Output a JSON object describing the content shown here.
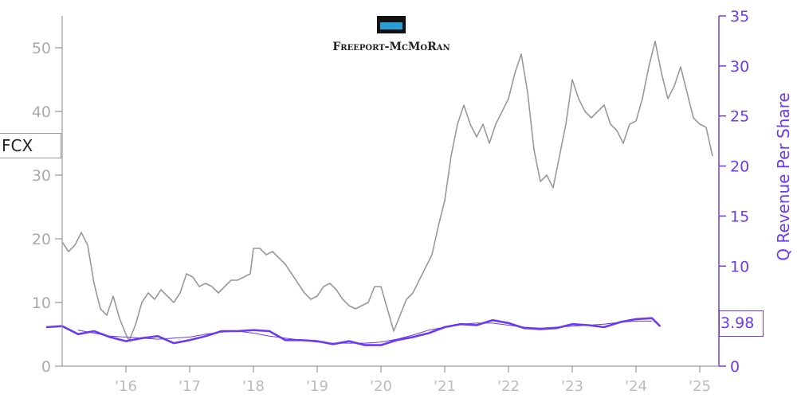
{
  "ticker": "FCX",
  "logo": {
    "text": "Freeport-McMoRan"
  },
  "colors": {
    "price": "#999999",
    "revenue": "#6a3bf0",
    "left_axis": "#aaaaaa",
    "x_axis": "#bbbbbb"
  },
  "chart_data": {
    "type": "line",
    "title": "",
    "y2label": "Q Revenue Per Share",
    "last_value_label": "3.98",
    "x_ticks": [
      "'16",
      "'17",
      "'18",
      "'19",
      "'20",
      "'21",
      "'22",
      "'23",
      "'24",
      "'25"
    ],
    "ylim": [
      0,
      55
    ],
    "y_ticks": [
      0,
      10,
      20,
      30,
      40,
      50
    ],
    "y2lim": [
      0,
      35
    ],
    "y2_ticks": [
      0,
      5,
      10,
      15,
      20,
      25,
      30,
      35
    ],
    "series": [
      {
        "axis": "left",
        "points": [
          [
            "2015.00",
            19.5
          ],
          [
            "2015.10",
            18.0
          ],
          [
            "2015.20",
            19.0
          ],
          [
            "2015.30",
            21.0
          ],
          [
            "2015.40",
            19.0
          ],
          [
            "2015.50",
            13.0
          ],
          [
            "2015.60",
            9.0
          ],
          [
            "2015.70",
            8.0
          ],
          [
            "2015.80",
            11.0
          ],
          [
            "2015.90",
            7.5
          ],
          [
            "2016.00",
            5.0
          ],
          [
            "2016.05",
            4.0
          ],
          [
            "2016.15",
            6.5
          ],
          [
            "2016.25",
            10.0
          ],
          [
            "2016.35",
            11.5
          ],
          [
            "2016.45",
            10.5
          ],
          [
            "2016.55",
            12.0
          ],
          [
            "2016.65",
            11.0
          ],
          [
            "2016.75",
            10.0
          ],
          [
            "2016.85",
            11.5
          ],
          [
            "2016.95",
            14.5
          ],
          [
            "2017.05",
            14.0
          ],
          [
            "2017.15",
            12.5
          ],
          [
            "2017.25",
            13.0
          ],
          [
            "2017.35",
            12.5
          ],
          [
            "2017.45",
            11.5
          ],
          [
            "2017.55",
            12.5
          ],
          [
            "2017.65",
            13.5
          ],
          [
            "2017.75",
            13.5
          ],
          [
            "2017.85",
            14.0
          ],
          [
            "2017.95",
            14.5
          ],
          [
            "2018.00",
            18.5
          ],
          [
            "2018.10",
            18.5
          ],
          [
            "2018.20",
            17.5
          ],
          [
            "2018.30",
            18.0
          ],
          [
            "2018.40",
            17.0
          ],
          [
            "2018.50",
            16.0
          ],
          [
            "2018.60",
            14.5
          ],
          [
            "2018.70",
            13.0
          ],
          [
            "2018.80",
            11.5
          ],
          [
            "2018.90",
            10.5
          ],
          [
            "2019.00",
            11.0
          ],
          [
            "2019.10",
            12.5
          ],
          [
            "2019.20",
            13.0
          ],
          [
            "2019.30",
            12.0
          ],
          [
            "2019.40",
            10.5
          ],
          [
            "2019.50",
            9.5
          ],
          [
            "2019.60",
            9.0
          ],
          [
            "2019.70",
            9.5
          ],
          [
            "2019.80",
            10.0
          ],
          [
            "2019.90",
            12.5
          ],
          [
            "2020.00",
            12.5
          ],
          [
            "2020.10",
            9.0
          ],
          [
            "2020.20",
            5.5
          ],
          [
            "2020.30",
            8.0
          ],
          [
            "2020.40",
            10.5
          ],
          [
            "2020.50",
            11.5
          ],
          [
            "2020.60",
            13.5
          ],
          [
            "2020.70",
            15.5
          ],
          [
            "2020.80",
            17.5
          ],
          [
            "2020.90",
            22.0
          ],
          [
            "2021.00",
            26.0
          ],
          [
            "2021.10",
            33.0
          ],
          [
            "2021.20",
            38.0
          ],
          [
            "2021.30",
            41.0
          ],
          [
            "2021.40",
            38.0
          ],
          [
            "2021.50",
            36.0
          ],
          [
            "2021.60",
            38.0
          ],
          [
            "2021.70",
            35.0
          ],
          [
            "2021.80",
            38.0
          ],
          [
            "2021.90",
            40.0
          ],
          [
            "2022.00",
            42.0
          ],
          [
            "2022.10",
            46.0
          ],
          [
            "2022.20",
            49.0
          ],
          [
            "2022.30",
            43.0
          ],
          [
            "2022.40",
            34.0
          ],
          [
            "2022.50",
            29.0
          ],
          [
            "2022.60",
            30.0
          ],
          [
            "2022.70",
            28.0
          ],
          [
            "2022.80",
            33.0
          ],
          [
            "2022.90",
            38.0
          ],
          [
            "2023.00",
            45.0
          ],
          [
            "2023.10",
            42.0
          ],
          [
            "2023.20",
            40.0
          ],
          [
            "2023.30",
            39.0
          ],
          [
            "2023.40",
            40.0
          ],
          [
            "2023.50",
            41.0
          ],
          [
            "2023.60",
            38.0
          ],
          [
            "2023.70",
            37.0
          ],
          [
            "2023.80",
            35.0
          ],
          [
            "2023.90",
            38.0
          ],
          [
            "2024.00",
            38.5
          ],
          [
            "2024.10",
            42.0
          ],
          [
            "2024.20",
            47.0
          ],
          [
            "2024.30",
            51.0
          ],
          [
            "2024.40",
            46.0
          ],
          [
            "2024.50",
            42.0
          ],
          [
            "2024.60",
            44.0
          ],
          [
            "2024.70",
            47.0
          ],
          [
            "2024.80",
            43.0
          ],
          [
            "2024.90",
            39.0
          ],
          [
            "2025.00",
            38.0
          ],
          [
            "2025.10",
            37.5
          ],
          [
            "2025.20",
            33.0
          ]
        ]
      },
      {
        "name": "Q Revenue Per Share",
        "axis": "right",
        "points": [
          [
            "2014.75",
            3.9
          ],
          [
            "2015.00",
            4.0
          ],
          [
            "2015.25",
            3.2
          ],
          [
            "2015.50",
            3.5
          ],
          [
            "2015.75",
            2.9
          ],
          [
            "2016.00",
            2.5
          ],
          [
            "2016.25",
            2.8
          ],
          [
            "2016.50",
            3.0
          ],
          [
            "2016.75",
            2.3
          ],
          [
            "2017.00",
            2.6
          ],
          [
            "2017.25",
            3.0
          ],
          [
            "2017.50",
            3.5
          ],
          [
            "2017.75",
            3.5
          ],
          [
            "2018.00",
            3.6
          ],
          [
            "2018.25",
            3.5
          ],
          [
            "2018.50",
            2.6
          ],
          [
            "2018.75",
            2.6
          ],
          [
            "2019.00",
            2.5
          ],
          [
            "2019.25",
            2.2
          ],
          [
            "2019.50",
            2.5
          ],
          [
            "2019.75",
            2.1
          ],
          [
            "2020.00",
            2.1
          ],
          [
            "2020.25",
            2.6
          ],
          [
            "2020.50",
            2.9
          ],
          [
            "2020.75",
            3.3
          ],
          [
            "2021.00",
            3.9
          ],
          [
            "2021.25",
            4.2
          ],
          [
            "2021.50",
            4.1
          ],
          [
            "2021.75",
            4.6
          ],
          [
            "2022.00",
            4.3
          ],
          [
            "2022.25",
            3.8
          ],
          [
            "2022.50",
            3.7
          ],
          [
            "2022.75",
            3.8
          ],
          [
            "2023.00",
            4.2
          ],
          [
            "2023.25",
            4.1
          ],
          [
            "2023.50",
            3.9
          ],
          [
            "2023.75",
            4.4
          ],
          [
            "2024.00",
            4.7
          ],
          [
            "2024.25",
            4.8
          ],
          [
            "2024.38",
            3.98
          ]
        ]
      },
      {
        "axis": "right",
        "points": [
          [
            "2015.25",
            3.6
          ],
          [
            "2015.50",
            3.3
          ],
          [
            "2015.75",
            3.0
          ],
          [
            "2016.00",
            2.9
          ],
          [
            "2016.25",
            2.8
          ],
          [
            "2016.50",
            2.7
          ],
          [
            "2016.75",
            2.8
          ],
          [
            "2017.00",
            2.9
          ],
          [
            "2017.25",
            3.2
          ],
          [
            "2017.50",
            3.4
          ],
          [
            "2017.75",
            3.5
          ],
          [
            "2018.00",
            3.3
          ],
          [
            "2018.25",
            3.0
          ],
          [
            "2018.50",
            2.8
          ],
          [
            "2018.75",
            2.6
          ],
          [
            "2019.00",
            2.4
          ],
          [
            "2019.25",
            2.3
          ],
          [
            "2019.50",
            2.3
          ],
          [
            "2019.75",
            2.3
          ],
          [
            "2020.00",
            2.4
          ],
          [
            "2020.25",
            2.7
          ],
          [
            "2020.50",
            3.1
          ],
          [
            "2020.75",
            3.6
          ],
          [
            "2021.00",
            3.9
          ],
          [
            "2021.25",
            4.2
          ],
          [
            "2021.50",
            4.3
          ],
          [
            "2021.75",
            4.3
          ],
          [
            "2022.00",
            4.1
          ],
          [
            "2022.25",
            3.9
          ],
          [
            "2022.50",
            3.8
          ],
          [
            "2022.75",
            3.9
          ],
          [
            "2023.00",
            4.0
          ],
          [
            "2023.25",
            4.1
          ],
          [
            "2023.50",
            4.2
          ],
          [
            "2023.75",
            4.4
          ],
          [
            "2024.00",
            4.5
          ],
          [
            "2024.25",
            4.5
          ]
        ]
      }
    ]
  }
}
